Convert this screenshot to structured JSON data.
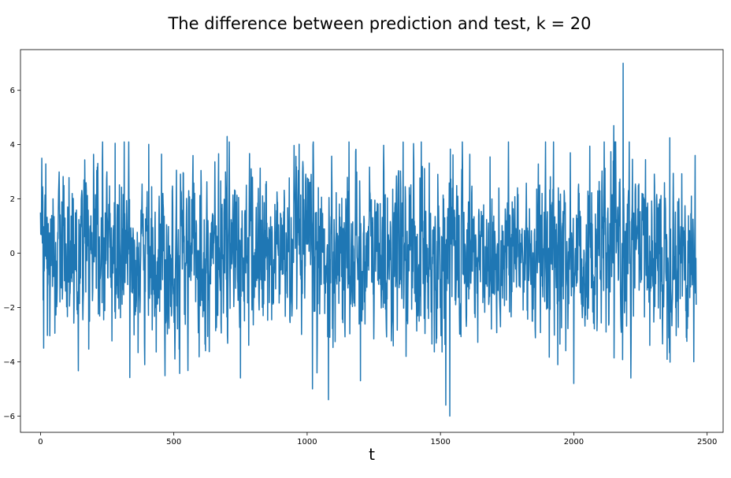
{
  "chart_data": {
    "type": "line",
    "title": "The difference between prediction and test, k = 20",
    "xlabel": "t",
    "ylabel": "",
    "xlim": [
      -75,
      2560
    ],
    "ylim": [
      -6.6,
      7.5
    ],
    "xticks": [
      0,
      500,
      1000,
      1500,
      2000,
      2500
    ],
    "yticks": [
      -6,
      -4,
      -2,
      0,
      2,
      4,
      6
    ],
    "grid": false,
    "series": [
      {
        "color": "#1f77b4",
        "n_points": 2460,
        "mean": 0,
        "std": 1.6,
        "range": [
          -6.0,
          7.0
        ],
        "x_start": 0,
        "x_end": 2459,
        "notable_points": [
          {
            "x": 0,
            "y": 1.5
          },
          {
            "x": 12,
            "y": -3.5
          },
          {
            "x": 280,
            "y": 4.05
          },
          {
            "x": 700,
            "y": 4.3
          },
          {
            "x": 1020,
            "y": -5.0
          },
          {
            "x": 1080,
            "y": -5.4
          },
          {
            "x": 1200,
            "y": -4.7
          },
          {
            "x": 1520,
            "y": -5.6
          },
          {
            "x": 1535,
            "y": -6.0
          },
          {
            "x": 2000,
            "y": -4.8
          },
          {
            "x": 2150,
            "y": 4.7
          },
          {
            "x": 2185,
            "y": 7.0
          },
          {
            "x": 2360,
            "y": 4.25
          },
          {
            "x": 2450,
            "y": -4.0
          },
          {
            "x": 2455,
            "y": 3.6
          },
          {
            "x": 2459,
            "y": -1.9
          }
        ]
      }
    ]
  }
}
